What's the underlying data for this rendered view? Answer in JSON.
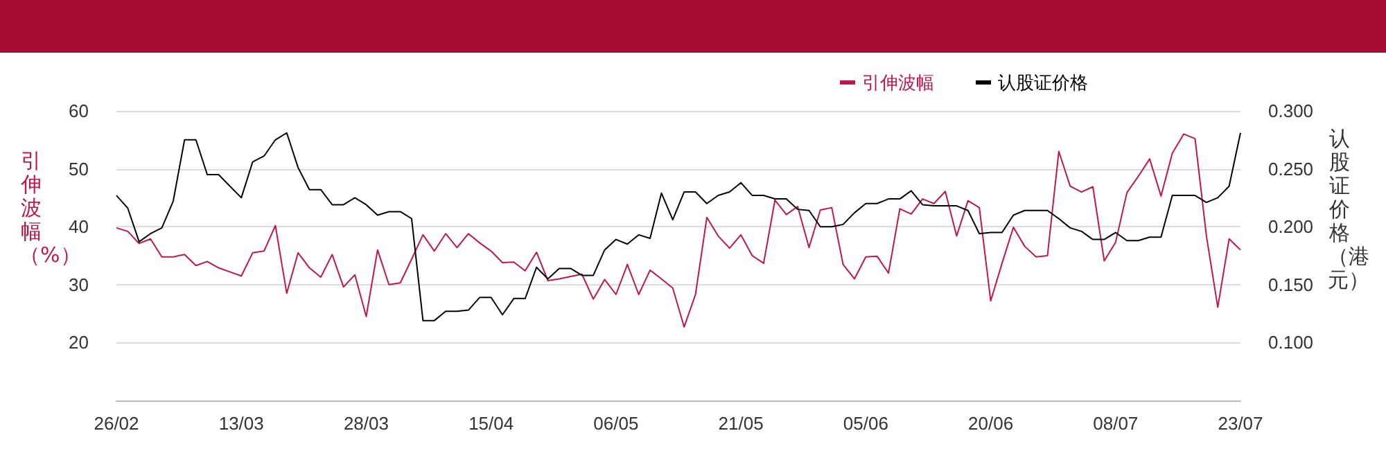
{
  "chart_data": {
    "type": "line",
    "categories": [
      "26/02",
      null,
      null,
      null,
      null,
      null,
      null,
      null,
      null,
      null,
      null,
      "13/03",
      null,
      null,
      null,
      null,
      null,
      null,
      null,
      null,
      null,
      null,
      "28/03",
      null,
      null,
      null,
      null,
      null,
      null,
      null,
      null,
      null,
      null,
      "15/04",
      null,
      null,
      null,
      null,
      null,
      null,
      null,
      null,
      null,
      null,
      "06/05",
      null,
      null,
      null,
      null,
      null,
      null,
      null,
      null,
      null,
      null,
      "21/05",
      null,
      null,
      null,
      null,
      null,
      null,
      null,
      null,
      null,
      null,
      "05/06",
      null,
      null,
      null,
      null,
      null,
      null,
      null,
      null,
      null,
      null,
      "20/06",
      null,
      null,
      null,
      null,
      null,
      null,
      null,
      null,
      null,
      null,
      "08/07",
      null,
      null,
      null,
      null,
      null,
      null,
      null,
      null,
      null,
      null,
      "23/07"
    ],
    "series": [
      {
        "name": "引伸波幅",
        "color": "#c0174a",
        "values": [
          39.8,
          39.2,
          37.1,
          37.9,
          34.8,
          34.8,
          35.2,
          33.3,
          34.0,
          32.9,
          32.2,
          31.5,
          35.5,
          35.8,
          40.2,
          28.5,
          35.5,
          32.9,
          31.3,
          35.2,
          29.6,
          31.7,
          24.5,
          36.0,
          30.0,
          30.3,
          34.4,
          38.6,
          35.8,
          38.8,
          36.4,
          38.8,
          37.2,
          35.8,
          33.8,
          33.9,
          32.4,
          35.6,
          30.7,
          31.0,
          31.4,
          31.8,
          27.5,
          30.9,
          28.3,
          33.5,
          28.3,
          32.5,
          31.0,
          29.4,
          22.7,
          28.3,
          41.6,
          38.4,
          36.3,
          38.6,
          35.0,
          33.7,
          44.6,
          42.1,
          43.5,
          36.4,
          42.9,
          43.3,
          33.5,
          31.0,
          34.8,
          34.9,
          32.0,
          43.1,
          42.2,
          44.8,
          44.0,
          46.1,
          38.4,
          44.5,
          43.3,
          27.2,
          33.7,
          39.9,
          36.6,
          34.8,
          35.0,
          53.0,
          47.0,
          46.0,
          46.9,
          34.1,
          37.3,
          45.9,
          48.7,
          51.7,
          45.3,
          52.7,
          56.0,
          55.2,
          38.4,
          26.1,
          37.9,
          36.0
        ]
      },
      {
        "name": "认股证价格",
        "color": "#000000",
        "axis": "y2",
        "values": [
          0.227,
          0.216,
          0.187,
          0.194,
          0.199,
          0.222,
          0.275,
          0.275,
          0.245,
          0.245,
          0.235,
          0.225,
          0.256,
          0.261,
          0.275,
          0.281,
          0.251,
          0.232,
          0.232,
          0.219,
          0.219,
          0.225,
          0.219,
          0.21,
          0.213,
          0.213,
          0.207,
          0.119,
          0.119,
          0.127,
          0.127,
          0.128,
          0.139,
          0.139,
          0.124,
          0.138,
          0.138,
          0.165,
          0.155,
          0.164,
          0.164,
          0.158,
          0.158,
          0.18,
          0.189,
          0.185,
          0.193,
          0.19,
          0.229,
          0.206,
          0.23,
          0.23,
          0.22,
          0.227,
          0.23,
          0.238,
          0.227,
          0.227,
          0.224,
          0.224,
          0.215,
          0.214,
          0.2,
          0.2,
          0.202,
          0.212,
          0.22,
          0.22,
          0.224,
          0.224,
          0.231,
          0.219,
          0.218,
          0.218,
          0.218,
          0.214,
          0.194,
          0.195,
          0.195,
          0.21,
          0.214,
          0.214,
          0.214,
          0.207,
          0.199,
          0.196,
          0.189,
          0.189,
          0.195,
          0.188,
          0.188,
          0.191,
          0.191,
          0.227,
          0.227,
          0.227,
          0.221,
          0.225,
          0.235,
          0.281
        ]
      }
    ],
    "ylabel": "引伸波幅（%）",
    "y2label": "认股证价格（港元）",
    "ylim": [
      10,
      60
    ],
    "yticks": [
      20,
      30,
      40,
      50,
      60
    ],
    "y2lim": [
      0.05,
      0.3
    ],
    "y2ticks": [
      {
        "value": 0.1,
        "label": "0.100"
      },
      {
        "value": 0.15,
        "label": "0.150"
      },
      {
        "value": 0.2,
        "label": "0.200"
      },
      {
        "value": 0.25,
        "label": "0.250"
      },
      {
        "value": 0.3,
        "label": "0.300"
      }
    ],
    "grid": "y",
    "legend": "top right",
    "marker": "none",
    "line_style": "solid"
  }
}
